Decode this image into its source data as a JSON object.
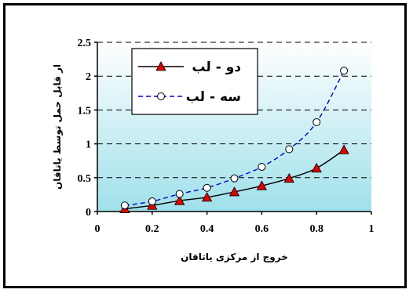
{
  "chart_data": {
    "type": "line",
    "xlabel": "خروج از مرکزی یاتاقان",
    "ylabel": "ار قابل حمل توسط یاتاقان",
    "xlim": [
      0,
      1
    ],
    "ylim": [
      0,
      2.5
    ],
    "x_ticks": [
      "0",
      "0.2",
      "0.4",
      "0.6",
      "0.8",
      "1"
    ],
    "y_ticks": [
      "0",
      "0.5",
      "1",
      "1.5",
      "2",
      "2.5"
    ],
    "grid": "horizontal dashed",
    "legend_position": "top-left",
    "series": [
      {
        "name": "دو - لب",
        "color": "#000000",
        "marker": "red-triangle",
        "line": "solid",
        "x": [
          0.1,
          0.2,
          0.3,
          0.4,
          0.5,
          0.6,
          0.7,
          0.8,
          0.9
        ],
        "y": [
          0.04,
          0.09,
          0.16,
          0.21,
          0.29,
          0.38,
          0.49,
          0.64,
          0.91
        ]
      },
      {
        "name": "سه - لب",
        "color": "#0000cc",
        "marker": "white-circle",
        "line": "dashed",
        "x": [
          0.1,
          0.2,
          0.3,
          0.4,
          0.5,
          0.6,
          0.7,
          0.8,
          0.9
        ],
        "y": [
          0.09,
          0.15,
          0.26,
          0.35,
          0.49,
          0.66,
          0.92,
          1.32,
          2.08
        ]
      }
    ]
  }
}
